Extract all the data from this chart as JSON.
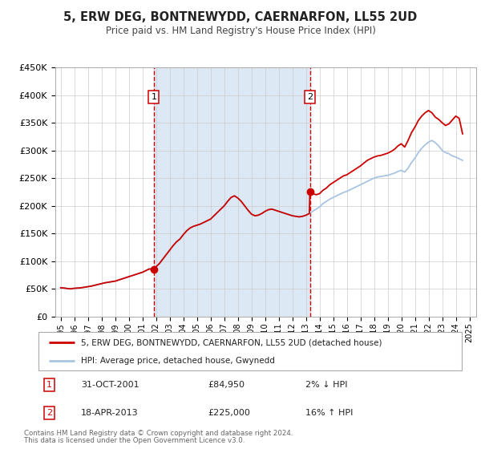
{
  "title": "5, ERW DEG, BONTNEWYDD, CAERNARFON, LL55 2UD",
  "subtitle": "Price paid vs. HM Land Registry's House Price Index (HPI)",
  "legend_line1": "5, ERW DEG, BONTNEWYDD, CAERNARFON, LL55 2UD (detached house)",
  "legend_line2": "HPI: Average price, detached house, Gwynedd",
  "annotation1_label": "1",
  "annotation1_date": "31-OCT-2001",
  "annotation1_price": "£84,950",
  "annotation1_hpi": "2% ↓ HPI",
  "annotation2_label": "2",
  "annotation2_date": "18-APR-2013",
  "annotation2_price": "£225,000",
  "annotation2_hpi": "16% ↑ HPI",
  "footer1": "Contains HM Land Registry data © Crown copyright and database right 2024.",
  "footer2": "This data is licensed under the Open Government Licence v3.0.",
  "sale1_year": 2001.83,
  "sale1_value": 84950,
  "sale2_year": 2013.29,
  "sale2_value": 225000,
  "hpi_color": "#a8c4e0",
  "price_color": "#cc0000",
  "vline_color": "#cc0000",
  "background_color": "#dce9f5",
  "plot_bg": "#ffffff",
  "ylim": [
    0,
    450000
  ],
  "xlim_start": 1994.6,
  "xlim_end": 2025.5,
  "ytick_values": [
    0,
    50000,
    100000,
    150000,
    200000,
    250000,
    300000,
    350000,
    400000,
    450000
  ],
  "ytick_labels": [
    "£0",
    "£50K",
    "£100K",
    "£150K",
    "£200K",
    "£250K",
    "£300K",
    "£350K",
    "£400K",
    "£450K"
  ],
  "xtick_years": [
    1995,
    1996,
    1997,
    1998,
    1999,
    2000,
    2001,
    2002,
    2003,
    2004,
    2005,
    2006,
    2007,
    2008,
    2009,
    2010,
    2011,
    2012,
    2013,
    2014,
    2015,
    2016,
    2017,
    2018,
    2019,
    2020,
    2021,
    2022,
    2023,
    2024,
    2025
  ],
  "hpi_data": [
    [
      1995.0,
      52000
    ],
    [
      1995.25,
      51500
    ],
    [
      1995.5,
      50500
    ],
    [
      1995.75,
      50000
    ],
    [
      1996.0,
      51000
    ],
    [
      1996.25,
      51500
    ],
    [
      1996.5,
      52000
    ],
    [
      1996.75,
      53000
    ],
    [
      1997.0,
      54000
    ],
    [
      1997.25,
      55000
    ],
    [
      1997.5,
      56500
    ],
    [
      1997.75,
      58000
    ],
    [
      1998.0,
      59500
    ],
    [
      1998.25,
      61000
    ],
    [
      1998.5,
      62000
    ],
    [
      1998.75,
      63000
    ],
    [
      1999.0,
      64000
    ],
    [
      1999.25,
      66000
    ],
    [
      1999.5,
      68000
    ],
    [
      1999.75,
      70000
    ],
    [
      2000.0,
      72000
    ],
    [
      2000.25,
      74000
    ],
    [
      2000.5,
      76000
    ],
    [
      2000.75,
      78000
    ],
    [
      2001.0,
      80000
    ],
    [
      2001.25,
      83000
    ],
    [
      2001.5,
      86000
    ],
    [
      2001.75,
      87000
    ],
    [
      2002.0,
      90000
    ],
    [
      2002.25,
      96000
    ],
    [
      2002.5,
      104000
    ],
    [
      2002.75,
      112000
    ],
    [
      2003.0,
      120000
    ],
    [
      2003.25,
      128000
    ],
    [
      2003.5,
      135000
    ],
    [
      2003.75,
      140000
    ],
    [
      2004.0,
      148000
    ],
    [
      2004.25,
      155000
    ],
    [
      2004.5,
      160000
    ],
    [
      2004.75,
      163000
    ],
    [
      2005.0,
      165000
    ],
    [
      2005.25,
      167000
    ],
    [
      2005.5,
      170000
    ],
    [
      2005.75,
      173000
    ],
    [
      2006.0,
      176000
    ],
    [
      2006.25,
      182000
    ],
    [
      2006.5,
      188000
    ],
    [
      2006.75,
      194000
    ],
    [
      2007.0,
      200000
    ],
    [
      2007.25,
      208000
    ],
    [
      2007.5,
      215000
    ],
    [
      2007.75,
      218000
    ],
    [
      2008.0,
      214000
    ],
    [
      2008.25,
      208000
    ],
    [
      2008.5,
      200000
    ],
    [
      2008.75,
      192000
    ],
    [
      2009.0,
      185000
    ],
    [
      2009.25,
      182000
    ],
    [
      2009.5,
      183000
    ],
    [
      2009.75,
      186000
    ],
    [
      2010.0,
      190000
    ],
    [
      2010.25,
      193000
    ],
    [
      2010.5,
      194000
    ],
    [
      2010.75,
      192000
    ],
    [
      2011.0,
      190000
    ],
    [
      2011.25,
      188000
    ],
    [
      2011.5,
      186000
    ],
    [
      2011.75,
      184000
    ],
    [
      2012.0,
      182000
    ],
    [
      2012.25,
      181000
    ],
    [
      2012.5,
      180000
    ],
    [
      2012.75,
      181000
    ],
    [
      2013.0,
      183000
    ],
    [
      2013.25,
      186000
    ],
    [
      2013.5,
      190000
    ],
    [
      2013.75,
      194000
    ],
    [
      2014.0,
      198000
    ],
    [
      2014.25,
      204000
    ],
    [
      2014.5,
      208000
    ],
    [
      2014.75,
      212000
    ],
    [
      2015.0,
      215000
    ],
    [
      2015.25,
      218000
    ],
    [
      2015.5,
      221000
    ],
    [
      2015.75,
      224000
    ],
    [
      2016.0,
      226000
    ],
    [
      2016.25,
      229000
    ],
    [
      2016.5,
      232000
    ],
    [
      2016.75,
      235000
    ],
    [
      2017.0,
      238000
    ],
    [
      2017.25,
      241000
    ],
    [
      2017.5,
      244000
    ],
    [
      2017.75,
      247000
    ],
    [
      2018.0,
      250000
    ],
    [
      2018.25,
      252000
    ],
    [
      2018.5,
      253000
    ],
    [
      2018.75,
      254000
    ],
    [
      2019.0,
      255000
    ],
    [
      2019.25,
      257000
    ],
    [
      2019.5,
      259000
    ],
    [
      2019.75,
      262000
    ],
    [
      2020.0,
      264000
    ],
    [
      2020.25,
      261000
    ],
    [
      2020.5,
      268000
    ],
    [
      2020.75,
      278000
    ],
    [
      2021.0,
      286000
    ],
    [
      2021.25,
      296000
    ],
    [
      2021.5,
      304000
    ],
    [
      2021.75,
      310000
    ],
    [
      2022.0,
      315000
    ],
    [
      2022.25,
      318000
    ],
    [
      2022.5,
      314000
    ],
    [
      2022.75,
      308000
    ],
    [
      2023.0,
      300000
    ],
    [
      2023.25,
      296000
    ],
    [
      2023.5,
      294000
    ],
    [
      2023.75,
      290000
    ],
    [
      2024.0,
      288000
    ],
    [
      2024.25,
      285000
    ],
    [
      2024.5,
      282000
    ]
  ],
  "price_data": [
    [
      1995.0,
      52000
    ],
    [
      1995.25,
      51500
    ],
    [
      1995.5,
      50500
    ],
    [
      1995.75,
      50000
    ],
    [
      1996.0,
      51000
    ],
    [
      1996.25,
      51500
    ],
    [
      1996.5,
      52000
    ],
    [
      1996.75,
      53000
    ],
    [
      1997.0,
      54000
    ],
    [
      1997.25,
      55000
    ],
    [
      1997.5,
      56500
    ],
    [
      1997.75,
      58000
    ],
    [
      1998.0,
      59500
    ],
    [
      1998.25,
      61000
    ],
    [
      1998.5,
      62000
    ],
    [
      1998.75,
      63000
    ],
    [
      1999.0,
      64000
    ],
    [
      1999.25,
      66000
    ],
    [
      1999.5,
      68000
    ],
    [
      1999.75,
      70000
    ],
    [
      2000.0,
      72000
    ],
    [
      2000.25,
      74000
    ],
    [
      2000.5,
      76000
    ],
    [
      2000.75,
      78000
    ],
    [
      2001.0,
      80000
    ],
    [
      2001.25,
      83000
    ],
    [
      2001.5,
      86000
    ],
    [
      2001.75,
      84950
    ],
    [
      2002.0,
      90000
    ],
    [
      2002.25,
      96000
    ],
    [
      2002.5,
      104000
    ],
    [
      2002.75,
      112000
    ],
    [
      2003.0,
      120000
    ],
    [
      2003.25,
      128000
    ],
    [
      2003.5,
      135000
    ],
    [
      2003.75,
      140000
    ],
    [
      2004.0,
      148000
    ],
    [
      2004.25,
      155000
    ],
    [
      2004.5,
      160000
    ],
    [
      2004.75,
      163000
    ],
    [
      2005.0,
      165000
    ],
    [
      2005.25,
      167000
    ],
    [
      2005.5,
      170000
    ],
    [
      2005.75,
      173000
    ],
    [
      2006.0,
      176000
    ],
    [
      2006.25,
      182000
    ],
    [
      2006.5,
      188000
    ],
    [
      2006.75,
      194000
    ],
    [
      2007.0,
      200000
    ],
    [
      2007.25,
      208000
    ],
    [
      2007.5,
      215000
    ],
    [
      2007.75,
      218000
    ],
    [
      2008.0,
      214000
    ],
    [
      2008.25,
      208000
    ],
    [
      2008.5,
      200000
    ],
    [
      2008.75,
      192000
    ],
    [
      2009.0,
      185000
    ],
    [
      2009.25,
      182000
    ],
    [
      2009.5,
      183000
    ],
    [
      2009.75,
      186000
    ],
    [
      2010.0,
      190000
    ],
    [
      2010.25,
      193000
    ],
    [
      2010.5,
      194000
    ],
    [
      2010.75,
      192000
    ],
    [
      2011.0,
      190000
    ],
    [
      2011.25,
      188000
    ],
    [
      2011.5,
      186000
    ],
    [
      2011.75,
      184000
    ],
    [
      2012.0,
      182000
    ],
    [
      2012.25,
      181000
    ],
    [
      2012.5,
      180000
    ],
    [
      2012.75,
      181000
    ],
    [
      2013.0,
      183000
    ],
    [
      2013.25,
      186000
    ],
    [
      2013.29,
      225000
    ],
    [
      2013.5,
      222000
    ],
    [
      2013.75,
      220000
    ],
    [
      2014.0,
      222000
    ],
    [
      2014.25,
      228000
    ],
    [
      2014.5,
      232000
    ],
    [
      2014.75,
      238000
    ],
    [
      2015.0,
      242000
    ],
    [
      2015.25,
      246000
    ],
    [
      2015.5,
      250000
    ],
    [
      2015.75,
      254000
    ],
    [
      2016.0,
      256000
    ],
    [
      2016.25,
      260000
    ],
    [
      2016.5,
      264000
    ],
    [
      2016.75,
      268000
    ],
    [
      2017.0,
      272000
    ],
    [
      2017.25,
      277000
    ],
    [
      2017.5,
      282000
    ],
    [
      2017.75,
      285000
    ],
    [
      2018.0,
      288000
    ],
    [
      2018.25,
      290000
    ],
    [
      2018.5,
      291000
    ],
    [
      2018.75,
      293000
    ],
    [
      2019.0,
      295000
    ],
    [
      2019.25,
      298000
    ],
    [
      2019.5,
      302000
    ],
    [
      2019.75,
      308000
    ],
    [
      2020.0,
      312000
    ],
    [
      2020.25,
      306000
    ],
    [
      2020.5,
      318000
    ],
    [
      2020.75,
      332000
    ],
    [
      2021.0,
      342000
    ],
    [
      2021.25,
      354000
    ],
    [
      2021.5,
      362000
    ],
    [
      2021.75,
      368000
    ],
    [
      2022.0,
      372000
    ],
    [
      2022.25,
      368000
    ],
    [
      2022.5,
      360000
    ],
    [
      2022.75,
      356000
    ],
    [
      2023.0,
      350000
    ],
    [
      2023.25,
      345000
    ],
    [
      2023.5,
      348000
    ],
    [
      2023.75,
      355000
    ],
    [
      2024.0,
      362000
    ],
    [
      2024.25,
      358000
    ],
    [
      2024.5,
      330000
    ]
  ]
}
